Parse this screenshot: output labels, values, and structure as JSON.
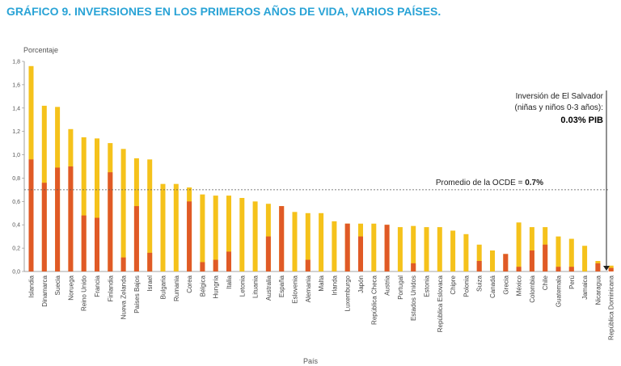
{
  "title": "GRÁFICO 9. INVERSIONES EN LOS PRIMEROS AÑOS DE VIDA, VARIOS PAÍSES.",
  "colors": {
    "title": "#29a3d6",
    "total": "#f5c21b",
    "early": "#e05a26",
    "axis": "#888888",
    "reference": "#555555"
  },
  "chart_data": {
    "type": "bar",
    "stacked": true,
    "ylabel": "Porcentaje",
    "xlabel": "País",
    "ylim": [
      0,
      1.8
    ],
    "yticks": [
      "0,0",
      "0,2",
      "0,4",
      "0,6",
      "0,8",
      "1,0",
      "1,2",
      "1,4",
      "1,6",
      "1,8"
    ],
    "categories": [
      "Islandia",
      "Dinamarca",
      "Suecia",
      "Noruega",
      "Reino Unido",
      "Francia",
      "Finlandia",
      "Nueva Zelanda",
      "Países Bajos",
      "Israel",
      "Bulgaria",
      "Rumania",
      "Corea",
      "Bélgica",
      "Hungría",
      "Italia",
      "Letonia",
      "Lituania",
      "Australia",
      "España",
      "Eslovenia",
      "Alemania",
      "Malta",
      "Irlanda",
      "Luxemburgo",
      "Japón",
      "República Checa",
      "Austria",
      "Portugal",
      "Estados Unidos",
      "Estonia",
      "República Eslovaca",
      "Chipre",
      "Polonia",
      "Suiza",
      "Canadá",
      "Grecia",
      "México",
      "Colombia",
      "Chile",
      "Guatemala",
      "Perú",
      "Jamaica",
      "Nicaragua",
      "República Dominicana"
    ],
    "totals": [
      1.76,
      1.42,
      1.41,
      1.22,
      1.15,
      1.14,
      1.1,
      1.05,
      0.97,
      0.96,
      0.75,
      0.75,
      0.72,
      0.66,
      0.65,
      0.65,
      0.63,
      0.6,
      0.58,
      0.56,
      0.51,
      0.5,
      0.5,
      0.43,
      0.41,
      0.41,
      0.41,
      0.4,
      0.38,
      0.39,
      0.38,
      0.38,
      0.35,
      0.32,
      0.23,
      0.18,
      0.15,
      0.42,
      0.38,
      0.38,
      0.3,
      0.28,
      0.22,
      0.09,
      0.05
    ],
    "early": [
      0.96,
      0.76,
      0.89,
      0.9,
      0.48,
      0.46,
      0.85,
      0.12,
      0.56,
      0.16,
      0.0,
      0.0,
      0.6,
      0.08,
      0.1,
      0.17,
      0.0,
      0.0,
      0.3,
      0.56,
      0.0,
      0.1,
      0.0,
      0.0,
      0.41,
      0.3,
      0.0,
      0.4,
      0.0,
      0.07,
      0.0,
      0.0,
      0.0,
      0.0,
      0.09,
      0.0,
      0.15,
      0.04,
      0.18,
      0.23,
      0.04,
      0.04,
      0.0,
      0.07,
      0.03
    ],
    "reference_line": {
      "value": 0.7,
      "label": "Promedio de la OCDE = ",
      "label_value": "0.7%"
    },
    "annotation": {
      "line1": "Inversión de El Salvador",
      "line2": "(niñas y niños 0-3 años):",
      "value": "0.03% PIB"
    }
  }
}
